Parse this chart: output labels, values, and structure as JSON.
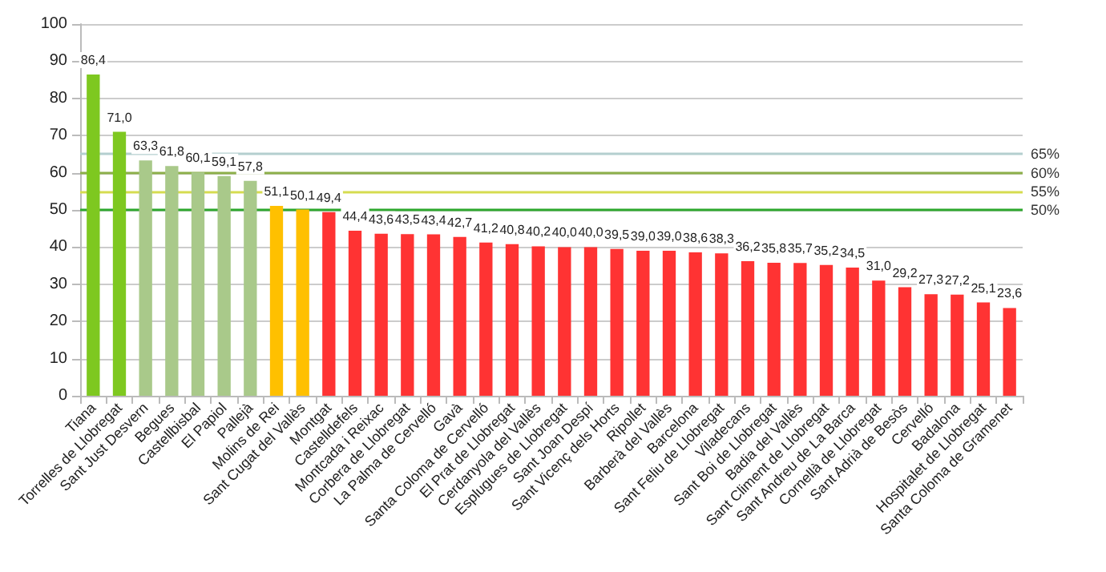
{
  "chart_data": {
    "type": "bar",
    "categories": [
      "Tiana",
      "Torrelles de Llobregat",
      "Sant Just Desvern",
      "Begues",
      "Castellbisbal",
      "El Papiol",
      "Pallejà",
      "Molins de Rei",
      "Sant Cugat del Vallès",
      "Montgat",
      "Castelldefels",
      "Montcada i Reixac",
      "Corbera de Llobregat",
      "La Palma de Cervelló",
      "Gavà",
      "Santa Coloma de Cervelló",
      "El Prat de Llobregat",
      "Cerdanyola del Vallès",
      "Esplugues de Llobregat",
      "Sant Joan Despí",
      "Sant Vicenç dels Horts",
      "Ripollet",
      "Barberà del Vallès",
      "Barcelona",
      "Sant Feliu de Llobregat",
      "Viladecans",
      "Sant Boi de Llobregat",
      "Badia del Vallès",
      "Sant Climent de Llobregat",
      "Sant Andreu de La Barca",
      "Cornellà de Llobregat",
      "Sant Adrià de Besòs",
      "Cervelló",
      "Badalona",
      "Hospitalet de Llobregat",
      "Santa Coloma de Gramenet"
    ],
    "values": [
      86.4,
      71.0,
      63.3,
      61.8,
      60.1,
      59.1,
      57.8,
      51.1,
      50.1,
      49.4,
      44.4,
      43.6,
      43.5,
      43.4,
      42.7,
      41.2,
      40.8,
      40.2,
      40.0,
      40.0,
      39.5,
      39.0,
      39.0,
      38.6,
      38.3,
      36.2,
      35.8,
      35.7,
      35.2,
      34.5,
      31.0,
      29.2,
      27.3,
      27.2,
      25.1,
      23.6
    ],
    "value_labels": [
      "86,4",
      "71,0",
      "63,3",
      "61,8",
      "60,1",
      "59,1",
      "57,8",
      "51,1",
      "50,1",
      "49,4",
      "44,4",
      "43,6",
      "43,5",
      "43,4",
      "42,7",
      "41,2",
      "40,8",
      "40,2",
      "40,0",
      "40,0",
      "39,5",
      "39,0",
      "39,0",
      "38,6",
      "38,3",
      "36,2",
      "35,8",
      "35,7",
      "35,2",
      "34,5",
      "31,0",
      "29,2",
      "27,3",
      "27,2",
      "25,1",
      "23,6"
    ],
    "colors": [
      "#7ec820",
      "#7ec820",
      "#a9c98a",
      "#a9c98a",
      "#a9c98a",
      "#a9c98a",
      "#a9c98a",
      "#ffc000",
      "#ffc000",
      "#ff3333",
      "#ff3333",
      "#ff3333",
      "#ff3333",
      "#ff3333",
      "#ff3333",
      "#ff3333",
      "#ff3333",
      "#ff3333",
      "#ff3333",
      "#ff3333",
      "#ff3333",
      "#ff3333",
      "#ff3333",
      "#ff3333",
      "#ff3333",
      "#ff3333",
      "#ff3333",
      "#ff3333",
      "#ff3333",
      "#ff3333",
      "#ff3333",
      "#ff3333",
      "#ff3333",
      "#ff3333",
      "#ff3333",
      "#ff3333"
    ],
    "ylim": [
      0,
      100
    ],
    "yticks": [
      0,
      10,
      20,
      30,
      40,
      50,
      60,
      70,
      80,
      90,
      100
    ],
    "grid": "y",
    "ref_lines": [
      {
        "axis": "y",
        "value": 65,
        "label": "65%",
        "color": "#b4cfcf"
      },
      {
        "axis": "y",
        "value": 60,
        "label": "60%",
        "color": "#8db04a"
      },
      {
        "axis": "y",
        "value": 55,
        "label": "55%",
        "color": "#d6dc50"
      },
      {
        "axis": "y",
        "value": 50,
        "label": "50%",
        "color": "#2ea82e"
      }
    ]
  }
}
